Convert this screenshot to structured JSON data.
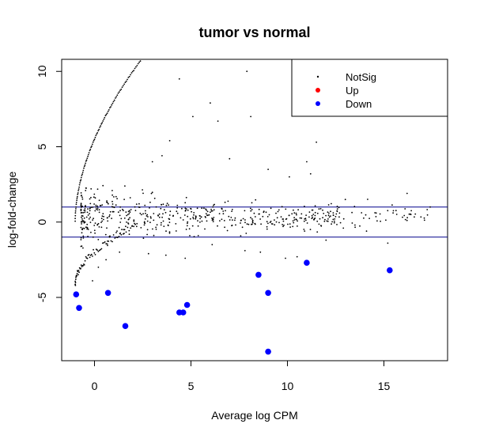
{
  "chart_data": {
    "type": "scatter",
    "title": "tumor vs normal",
    "xlabel": "Average log CPM",
    "ylabel": "log-fold-change",
    "xlim": [
      -1.7,
      18.3
    ],
    "ylim": [
      -9.2,
      10.8
    ],
    "xticks": [
      0,
      5,
      10,
      15
    ],
    "yticks": [
      -5,
      0,
      5,
      10
    ],
    "hlines": [
      1,
      -1
    ],
    "hline_color": "#00008b",
    "grid": false,
    "legend_position": "top-right",
    "legend": [
      {
        "label": "NotSig",
        "color": "#000000",
        "size": "small"
      },
      {
        "label": "Up",
        "color": "#ff0000",
        "size": "large"
      },
      {
        "label": "Down",
        "color": "#0000ff",
        "size": "large"
      }
    ],
    "series": [
      {
        "name": "Down",
        "color": "#0000ff",
        "points": [
          [
            -0.95,
            -4.8
          ],
          [
            -0.8,
            -5.7
          ],
          [
            0.7,
            -4.7
          ],
          [
            1.6,
            -6.9
          ],
          [
            4.4,
            -6.0
          ],
          [
            4.6,
            -6.0
          ],
          [
            4.8,
            -5.5
          ],
          [
            8.5,
            -3.5
          ],
          [
            9.0,
            -4.7
          ],
          [
            9.0,
            -8.6
          ],
          [
            11.0,
            -2.7
          ],
          [
            15.3,
            -3.2
          ]
        ]
      },
      {
        "name": "Up",
        "color": "#ff0000",
        "points": []
      },
      {
        "name": "NotSig",
        "color": "#000000",
        "outliers": [
          [
            7.9,
            10.0
          ],
          [
            4.4,
            9.5
          ],
          [
            6.0,
            7.9
          ],
          [
            6.4,
            6.7
          ],
          [
            5.1,
            7.0
          ],
          [
            8.1,
            7.0
          ],
          [
            11.5,
            5.3
          ],
          [
            3.5,
            4.4
          ],
          [
            7.0,
            4.2
          ],
          [
            11.0,
            4.0
          ],
          [
            9.0,
            3.5
          ],
          [
            3.9,
            5.4
          ],
          [
            3.0,
            4.0
          ],
          [
            10.1,
            3.0
          ],
          [
            11.2,
            3.2
          ],
          [
            13.0,
            1.5
          ],
          [
            16.2,
            1.9
          ],
          [
            17.4,
            1.0
          ],
          [
            16.4,
            0.5
          ],
          [
            12.9,
            -0.4
          ],
          [
            14.1,
            -0.6
          ],
          [
            14.6,
            0.6
          ],
          [
            15.2,
            -1.4
          ],
          [
            13.5,
            -0.2
          ],
          [
            8.6,
            -2.0
          ],
          [
            9.9,
            -2.4
          ],
          [
            7.8,
            -1.9
          ],
          [
            6.1,
            -1.5
          ],
          [
            4.7,
            -2.4
          ],
          [
            2.8,
            -2.1
          ],
          [
            3.7,
            -2.2
          ],
          [
            1.3,
            -2.0
          ],
          [
            0.6,
            -2.5
          ],
          [
            0.2,
            -3.0
          ],
          [
            -0.1,
            -3.9
          ],
          [
            10.5,
            -2.3
          ],
          [
            12.0,
            -1.2
          ]
        ]
      }
    ]
  }
}
